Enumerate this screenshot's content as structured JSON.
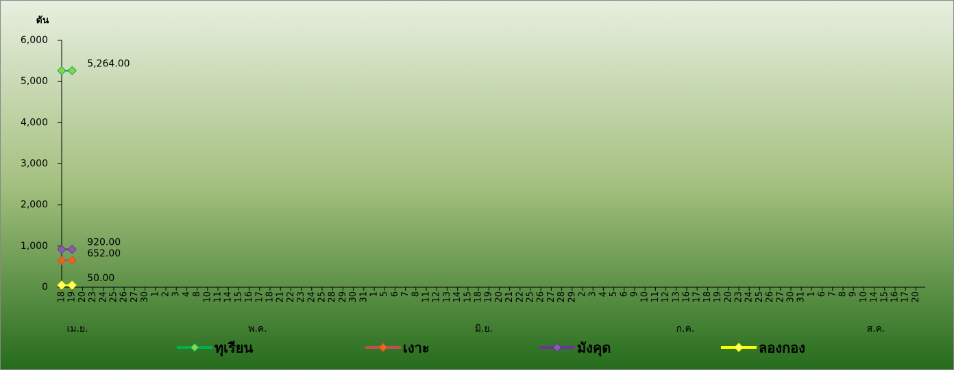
{
  "chart_data": {
    "type": "line",
    "y_label": "ตัน",
    "categories": [
      "18",
      "19",
      "20",
      "23",
      "24",
      "25",
      "26",
      "27",
      "30",
      "1",
      "2",
      "3",
      "4",
      "8",
      "10",
      "11",
      "14",
      "15",
      "16",
      "17",
      "18",
      "21",
      "22",
      "23",
      "24",
      "25",
      "28",
      "29",
      "30",
      "31",
      "1",
      "5",
      "6",
      "7",
      "8",
      "11",
      "12",
      "13",
      "14",
      "15",
      "18",
      "19",
      "20",
      "21",
      "22",
      "25",
      "26",
      "27",
      "28",
      "29",
      "2",
      "3",
      "4",
      "5",
      "6",
      "9",
      "10",
      "11",
      "12",
      "13",
      "16",
      "17",
      "18",
      "19",
      "20",
      "23",
      "24",
      "25",
      "26",
      "27",
      "30",
      "31",
      "1",
      "6",
      "7",
      "8",
      "9",
      "10",
      "14",
      "15",
      "16",
      "17",
      "20"
    ],
    "x_groups": [
      "เม.ย.",
      "พ.ค.",
      "มิ.ย.",
      "ก.ค.",
      "ส.ค."
    ],
    "ylim": [
      0,
      6000
    ],
    "yticks": [
      0,
      {
        "value": 1000,
        "label": "1,000"
      },
      {
        "value": 2000,
        "label": "2,000"
      },
      {
        "value": 3000,
        "label": "3,000"
      },
      {
        "value": 4000,
        "label": "4,000"
      },
      {
        "value": 5000,
        "label": "5,000"
      },
      {
        "value": 6000,
        "label": "6,000"
      }
    ],
    "series": [
      {
        "name": "ทุเรียน",
        "color": "#00b050",
        "marker_color": "#92d050",
        "values": [
          5264,
          5264,
          null,
          null,
          null,
          null,
          null,
          null,
          null,
          null,
          null,
          null,
          null,
          null,
          null,
          null,
          null,
          null,
          null,
          null,
          null,
          null,
          null,
          null,
          null,
          null,
          null,
          null,
          null,
          null,
          null,
          null,
          null,
          null,
          null,
          null,
          null,
          null,
          null,
          null,
          null,
          null,
          null,
          null,
          null,
          null,
          null,
          null,
          null,
          null,
          null,
          null,
          null,
          null,
          null,
          null,
          null,
          null,
          null,
          null,
          null,
          null,
          null,
          null,
          null,
          null,
          null,
          null,
          null,
          null,
          null,
          null,
          null,
          null,
          null,
          null,
          null,
          null,
          null,
          null,
          null,
          null,
          null
        ],
        "value_labels": [
          null,
          "5,264.00",
          null,
          null,
          null,
          null,
          null,
          null,
          null,
          null,
          null,
          null,
          null,
          null,
          null,
          null,
          null,
          null,
          null,
          null,
          null,
          null,
          null,
          null,
          null,
          null,
          null,
          null,
          null,
          null,
          null,
          null,
          null,
          null,
          null,
          null,
          null,
          null,
          null,
          null,
          null,
          null,
          null,
          null,
          null,
          null,
          null,
          null,
          null,
          null,
          null,
          null,
          null,
          null,
          null,
          null,
          null,
          null,
          null,
          null,
          null,
          null,
          null,
          null,
          null,
          null,
          null,
          null,
          null,
          null,
          null,
          null,
          null,
          null,
          null,
          null,
          null,
          null,
          null,
          null,
          null,
          null,
          null
        ]
      },
      {
        "name": "เงาะ",
        "color": "#c0504d",
        "marker_color": "#e46c0a",
        "values": [
          652,
          652,
          null,
          null,
          null,
          null,
          null,
          null,
          null,
          null,
          null,
          null,
          null,
          null,
          null,
          null,
          null,
          null,
          null,
          null,
          null,
          null,
          null,
          null,
          null,
          null,
          null,
          null,
          null,
          null,
          null,
          null,
          null,
          null,
          null,
          null,
          null,
          null,
          null,
          null,
          null,
          null,
          null,
          null,
          null,
          null,
          null,
          null,
          null,
          null,
          null,
          null,
          null,
          null,
          null,
          null,
          null,
          null,
          null,
          null,
          null,
          null,
          null,
          null,
          null,
          null,
          null,
          null,
          null,
          null,
          null,
          null,
          null,
          null,
          null,
          null,
          null,
          null,
          null,
          null,
          null,
          null,
          null
        ],
        "value_labels": [
          null,
          "652.00",
          null,
          null,
          null,
          null,
          null,
          null,
          null,
          null,
          null,
          null,
          null,
          null,
          null,
          null,
          null,
          null,
          null,
          null,
          null,
          null,
          null,
          null,
          null,
          null,
          null,
          null,
          null,
          null,
          null,
          null,
          null,
          null,
          null,
          null,
          null,
          null,
          null,
          null,
          null,
          null,
          null,
          null,
          null,
          null,
          null,
          null,
          null,
          null,
          null,
          null,
          null,
          null,
          null,
          null,
          null,
          null,
          null,
          null,
          null,
          null,
          null,
          null,
          null,
          null,
          null,
          null,
          null,
          null,
          null,
          null,
          null,
          null,
          null,
          null,
          null,
          null,
          null,
          null,
          null,
          null,
          null
        ]
      },
      {
        "name": "มังคุด",
        "color": "#7030a0",
        "marker_color": "#8064a2",
        "values": [
          920,
          920,
          null,
          null,
          null,
          null,
          null,
          null,
          null,
          null,
          null,
          null,
          null,
          null,
          null,
          null,
          null,
          null,
          null,
          null,
          null,
          null,
          null,
          null,
          null,
          null,
          null,
          null,
          null,
          null,
          null,
          null,
          null,
          null,
          null,
          null,
          null,
          null,
          null,
          null,
          null,
          null,
          null,
          null,
          null,
          null,
          null,
          null,
          null,
          null,
          null,
          null,
          null,
          null,
          null,
          null,
          null,
          null,
          null,
          null,
          null,
          null,
          null,
          null,
          null,
          null,
          null,
          null,
          null,
          null,
          null,
          null,
          null,
          null,
          null,
          null,
          null,
          null,
          null,
          null,
          null,
          null,
          null
        ],
        "value_labels": [
          null,
          "920.00",
          null,
          null,
          null,
          null,
          null,
          null,
          null,
          null,
          null,
          null,
          null,
          null,
          null,
          null,
          null,
          null,
          null,
          null,
          null,
          null,
          null,
          null,
          null,
          null,
          null,
          null,
          null,
          null,
          null,
          null,
          null,
          null,
          null,
          null,
          null,
          null,
          null,
          null,
          null,
          null,
          null,
          null,
          null,
          null,
          null,
          null,
          null,
          null,
          null,
          null,
          null,
          null,
          null,
          null,
          null,
          null,
          null,
          null,
          null,
          null,
          null,
          null,
          null,
          null,
          null,
          null,
          null,
          null,
          null,
          null,
          null,
          null,
          null,
          null,
          null,
          null,
          null,
          null,
          null,
          null,
          null
        ]
      },
      {
        "name": "ลองกอง",
        "color": "#ffff00",
        "marker_color": "#ffff66",
        "values": [
          50,
          50,
          null,
          null,
          null,
          null,
          null,
          null,
          null,
          null,
          null,
          null,
          null,
          null,
          null,
          null,
          null,
          null,
          null,
          null,
          null,
          null,
          null,
          null,
          null,
          null,
          null,
          null,
          null,
          null,
          null,
          null,
          null,
          null,
          null,
          null,
          null,
          null,
          null,
          null,
          null,
          null,
          null,
          null,
          null,
          null,
          null,
          null,
          null,
          null,
          null,
          null,
          null,
          null,
          null,
          null,
          null,
          null,
          null,
          null,
          null,
          null,
          null,
          null,
          null,
          null,
          null,
          null,
          null,
          null,
          null,
          null,
          null,
          null,
          null,
          null,
          null,
          null,
          null,
          null,
          null,
          null,
          null
        ],
        "value_labels": [
          null,
          "50.00",
          null,
          null,
          null,
          null,
          null,
          null,
          null,
          null,
          null,
          null,
          null,
          null,
          null,
          null,
          null,
          null,
          null,
          null,
          null,
          null,
          null,
          null,
          null,
          null,
          null,
          null,
          null,
          null,
          null,
          null,
          null,
          null,
          null,
          null,
          null,
          null,
          null,
          null,
          null,
          null,
          null,
          null,
          null,
          null,
          null,
          null,
          null,
          null,
          null,
          null,
          null,
          null,
          null,
          null,
          null,
          null,
          null,
          null,
          null,
          null,
          null,
          null,
          null,
          null,
          null,
          null,
          null,
          null,
          null,
          null,
          null,
          null,
          null,
          null,
          null,
          null,
          null,
          null,
          null,
          null,
          null
        ]
      }
    ]
  }
}
